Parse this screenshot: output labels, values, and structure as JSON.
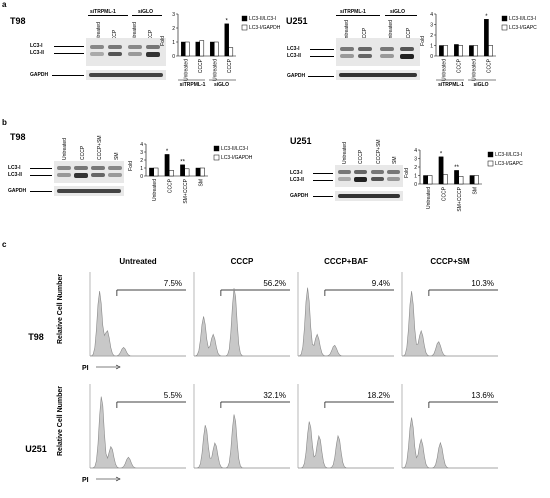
{
  "panels": {
    "a": "a",
    "b": "b",
    "c": "c"
  },
  "cells": {
    "t98": "T98",
    "u251": "U251"
  },
  "blot": {
    "lc3i": "LC3-I",
    "lc3ii": "LC3-II",
    "gapdh": "GAPDH",
    "untreated": "Untreated",
    "cccp": "CCCP",
    "cccp_sm": "CCCP+SM",
    "sm": "SM",
    "sitrpml": "siTRPML-1",
    "siglo": "siGLO"
  },
  "charts": {
    "fold": "Fold",
    "legend_a_t98": [
      "LC3-II/LC3-I",
      "LC3-I/GAPDH"
    ],
    "legend_a_u251": [
      "LC3-II/LC3-I",
      "LC3-I/GAPC"
    ],
    "legend_b_t98": [
      "LC3-II/LC3-I",
      "LC3-I/GAPDH"
    ],
    "legend_b_u251": [
      "LC3-II/LC3-I",
      "LC3-I/GAPC"
    ],
    "a_cats": [
      "Untreated",
      "CCCP",
      "Untreated",
      "CCCP"
    ],
    "a_groups": [
      "siTRPML-1",
      "siGLO"
    ],
    "b_cats": [
      "Untreated",
      "CCCP",
      "SM+CCCP",
      "SM"
    ],
    "star": "*",
    "dstar": "**"
  },
  "chart_data": [
    {
      "type": "bar",
      "categories": [
        "Untreated",
        "CCCP",
        "Untreated",
        "CCCP"
      ],
      "ylim": [
        0,
        3
      ],
      "yticks": [
        "0",
        "1",
        "2",
        "3"
      ],
      "series": [
        {
          "name": "LC3-II/LC3-I",
          "values": [
            1.0,
            1.0,
            1.0,
            2.3
          ]
        },
        {
          "name": "LC3-I/GAPDH",
          "values": [
            1.0,
            1.1,
            1.0,
            0.6
          ]
        }
      ]
    },
    {
      "type": "bar",
      "categories": [
        "Untreated",
        "CCCP",
        "Untreated",
        "CCCP"
      ],
      "ylim": [
        0,
        4
      ],
      "yticks": [
        "0",
        "1",
        "2",
        "3",
        "4"
      ],
      "series": [
        {
          "name": "LC3-II/LC3-I",
          "values": [
            1.0,
            1.1,
            1.0,
            3.5
          ]
        },
        {
          "name": "LC3-I/GAPC",
          "values": [
            1.0,
            1.0,
            1.0,
            1.0
          ]
        }
      ]
    },
    {
      "type": "bar",
      "categories": [
        "Untreated",
        "CCCP",
        "SM+CCCP",
        "SM"
      ],
      "ylim": [
        0,
        4
      ],
      "yticks": [
        "0",
        "1",
        "2",
        "3",
        "4"
      ],
      "series": [
        {
          "name": "LC3-II/LC3-I",
          "values": [
            1.0,
            2.7,
            1.4,
            1.0
          ]
        },
        {
          "name": "LC3-I/GAPDH",
          "values": [
            1.0,
            0.7,
            0.9,
            1.0
          ]
        }
      ]
    },
    {
      "type": "bar",
      "categories": [
        "Untreated",
        "CCCP",
        "SM+CCCP",
        "SM"
      ],
      "ylim": [
        0,
        4
      ],
      "yticks": [
        "0",
        "1",
        "2",
        "3",
        "4"
      ],
      "series": [
        {
          "name": "LC3-II/LC3-I",
          "values": [
            1.0,
            3.2,
            1.6,
            1.0
          ]
        },
        {
          "name": "LC3-I/GAPC",
          "values": [
            1.0,
            1.1,
            0.9,
            1.0
          ]
        }
      ]
    }
  ],
  "flow": {
    "ylabel": "Relative Cell Number",
    "xlabel": "PI",
    "headers": [
      "Untreated",
      "CCCP",
      "CCCP+BAF",
      "CCCP+SM"
    ],
    "t98": [
      "7.5%",
      "56.2%",
      "9.4%",
      "10.3%"
    ],
    "u251": [
      "5.5%",
      "32.1%",
      "18.2%",
      "13.6%"
    ]
  }
}
